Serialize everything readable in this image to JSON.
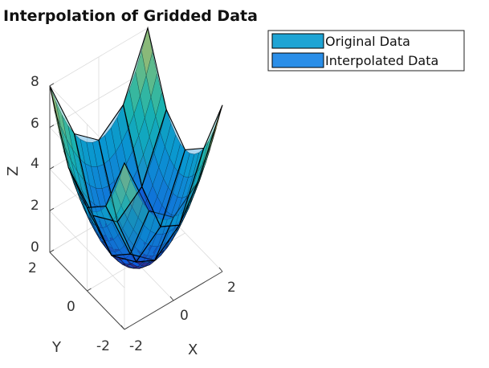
{
  "chart_data": {
    "type": "surface",
    "title": "Interpolation of Gridded Data",
    "xlabel": "X",
    "ylabel": "Y",
    "zlabel": "Z",
    "xlim": [
      -2,
      2
    ],
    "ylim": [
      -2,
      2
    ],
    "zlim": [
      0,
      8
    ],
    "x_ticks": [
      "-2",
      "0",
      "2"
    ],
    "y_ticks": [
      "-2",
      "0",
      "2"
    ],
    "z_ticks": [
      "0",
      "2",
      "4",
      "6",
      "8"
    ],
    "function": "z = x^2 + y^2",
    "grid": true,
    "colormap": "parula",
    "legend_position": "top-right",
    "series": [
      {
        "name": "Original Data",
        "color": "#1fa4d4",
        "x": [
          -2,
          -1,
          0,
          1,
          2
        ],
        "y": [
          -2,
          -1,
          0,
          1,
          2
        ],
        "z": [
          [
            8,
            5,
            4,
            5,
            8
          ],
          [
            5,
            2,
            1,
            2,
            5
          ],
          [
            4,
            1,
            0,
            1,
            4
          ],
          [
            5,
            2,
            1,
            2,
            5
          ],
          [
            8,
            5,
            4,
            5,
            8
          ]
        ]
      },
      {
        "name": "Interpolated Data",
        "color": "#2a8ee8",
        "x_step": 0.25,
        "y_step": 0.25
      }
    ]
  }
}
